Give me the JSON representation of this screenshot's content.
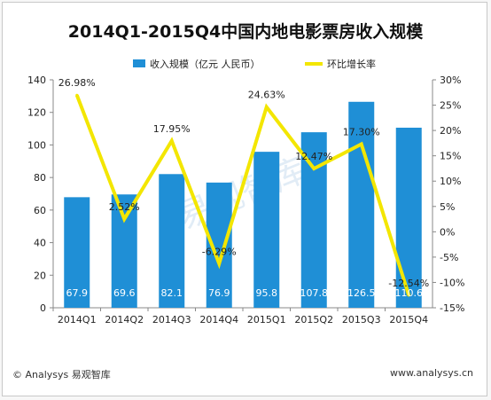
{
  "chart_data": {
    "type": "bar+line",
    "title": "2014Q1-2015Q4中国内地电影票房收入规模",
    "categories": [
      "2014Q1",
      "2014Q2",
      "2014Q3",
      "2014Q4",
      "2015Q1",
      "2015Q2",
      "2015Q3",
      "2015Q4"
    ],
    "series": [
      {
        "name": "收入规模（亿元 人民币）",
        "type": "bar",
        "axis": "left",
        "values": [
          67.9,
          69.6,
          82.1,
          76.9,
          95.8,
          107.8,
          126.5,
          110.6
        ],
        "labels": [
          "67.9",
          "69.6",
          "82.1",
          "76.9",
          "95.8",
          "107.8",
          "126.5",
          "110.6"
        ]
      },
      {
        "name": "环比增长率",
        "type": "line",
        "axis": "right",
        "values": [
          26.98,
          2.52,
          17.95,
          -6.29,
          24.63,
          12.47,
          17.3,
          -12.54
        ],
        "labels": [
          "26.98%",
          "2.52%",
          "17.95%",
          "-6.29%",
          "24.63%",
          "12.47%",
          "17.30%",
          "-12.54%"
        ]
      }
    ],
    "y_left": {
      "min": 0,
      "max": 140,
      "step": 20,
      "ticks": [
        "0",
        "20",
        "40",
        "60",
        "80",
        "100",
        "120",
        "140"
      ]
    },
    "y_right": {
      "min": -15,
      "max": 30,
      "step": 5,
      "ticks": [
        "-15%",
        "-10%",
        "-5%",
        "0%",
        "5%",
        "10%",
        "15%",
        "20%",
        "25%",
        "30%"
      ]
    },
    "legend_position": "top-center",
    "grid": false,
    "colors": {
      "bar": "#1f8fd6",
      "line": "#f3e600",
      "bar_label": "#ffffff",
      "text": "#222222"
    },
    "watermark": "易观智库"
  },
  "footer": {
    "copyright": "© Analysys 易观智库",
    "website": "www.analysys.cn"
  }
}
